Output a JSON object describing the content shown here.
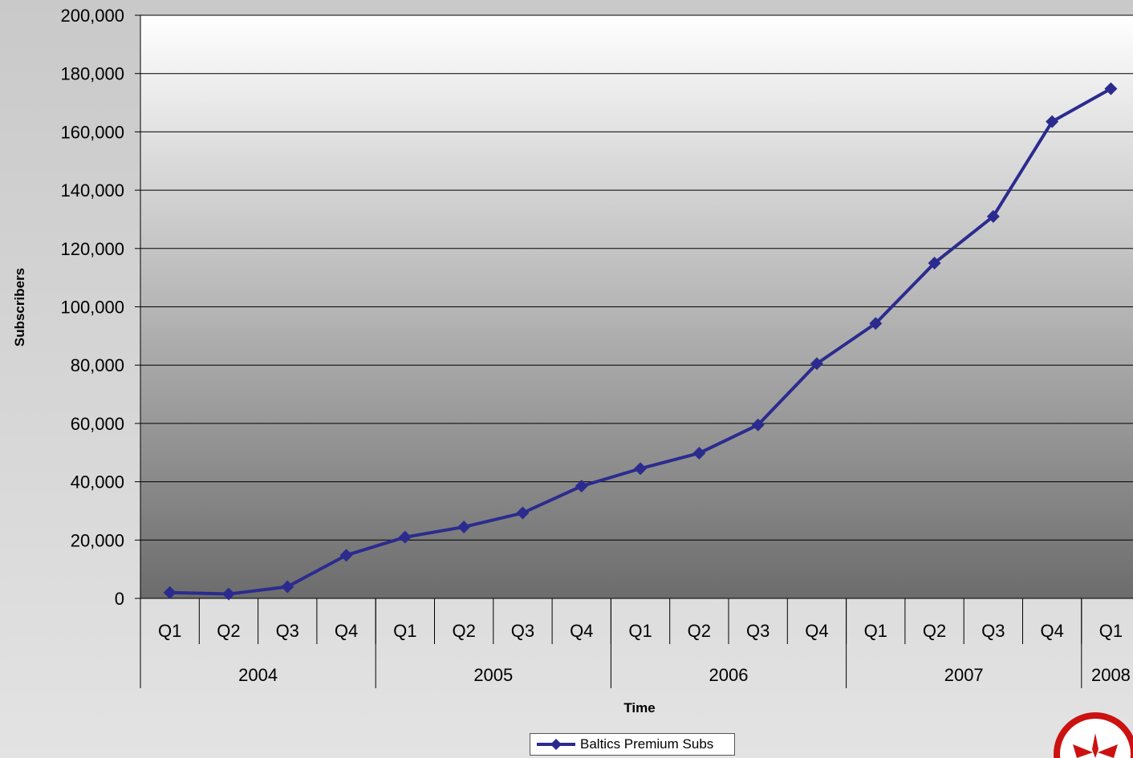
{
  "chart_data": {
    "type": "line",
    "xlabel": "Time",
    "ylabel": "Subscribers",
    "ylim": [
      0,
      200000
    ],
    "yticks": [
      0,
      20000,
      40000,
      60000,
      80000,
      100000,
      120000,
      140000,
      160000,
      180000,
      200000
    ],
    "ytick_labels": [
      "0",
      "20,000",
      "40,000",
      "60,000",
      "80,000",
      "100,000",
      "120,000",
      "140,000",
      "160,000",
      "180,000",
      "200,000"
    ],
    "categories": [
      "Q1",
      "Q2",
      "Q3",
      "Q4",
      "Q1",
      "Q2",
      "Q3",
      "Q4",
      "Q1",
      "Q2",
      "Q3",
      "Q4",
      "Q1",
      "Q2",
      "Q3",
      "Q4",
      "Q1"
    ],
    "year_groups": [
      {
        "label": "2004",
        "count": 4
      },
      {
        "label": "2005",
        "count": 4
      },
      {
        "label": "2006",
        "count": 4
      },
      {
        "label": "2007",
        "count": 4
      },
      {
        "label": "2008",
        "count": 1
      }
    ],
    "series": [
      {
        "name": "Baltics Premium Subs",
        "color": "#2b2b8f",
        "marker": "diamond",
        "values": [
          2000,
          1500,
          4000,
          14800,
          21000,
          24500,
          29300,
          38500,
          44500,
          49800,
          59500,
          80500,
          94300,
          115000,
          131000,
          163500,
          174800
        ]
      }
    ],
    "grid": true,
    "legend_position": "bottom-center"
  },
  "legend": {
    "label": "Baltics Premium Subs"
  },
  "logo": {
    "name": "compass-logo-icon",
    "color": "#cc1111"
  }
}
